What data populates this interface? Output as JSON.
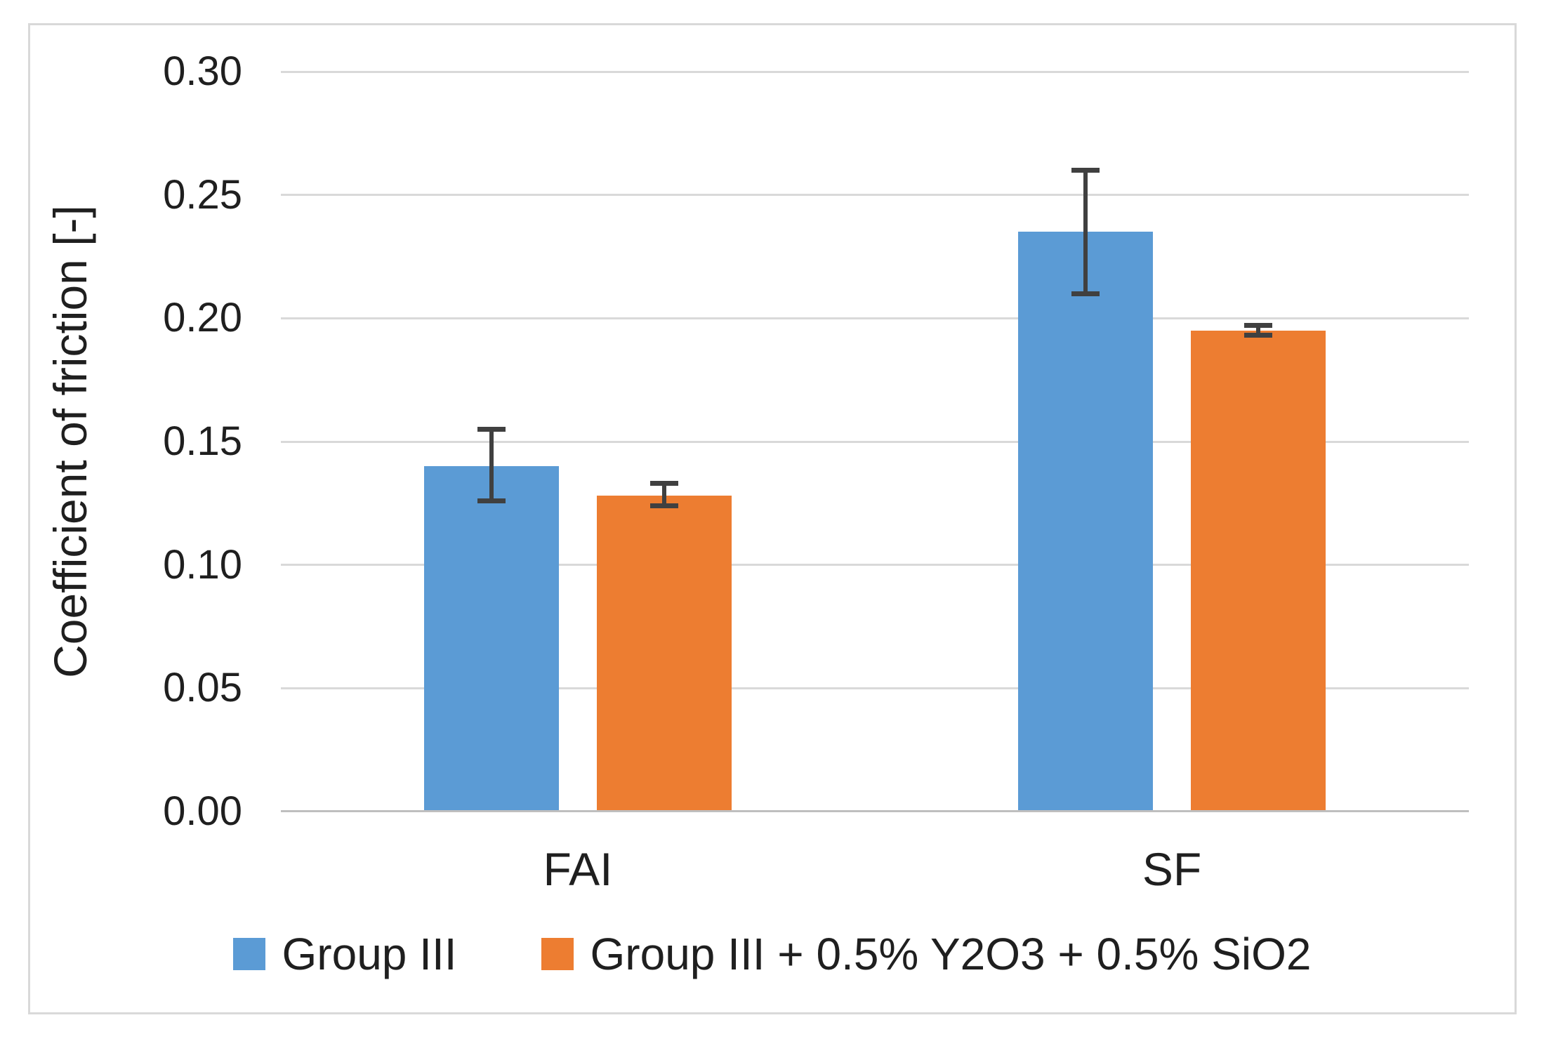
{
  "chart_data": {
    "type": "bar",
    "title": "",
    "xlabel": "",
    "ylabel": "Coefficient of friction [-]",
    "ylim": [
      0,
      0.3
    ],
    "ytick_step": 0.05,
    "ytick_labels": [
      "0.30",
      "0.25",
      "0.20",
      "0.15",
      "0.10",
      "0.05",
      "0.00"
    ],
    "categories": [
      "FAI",
      "SF"
    ],
    "series": [
      {
        "name": "Group III",
        "color": "#5b9bd5",
        "values": [
          0.14,
          0.235
        ],
        "error_plus": [
          0.015,
          0.025
        ],
        "error_minus": [
          0.014,
          0.025
        ]
      },
      {
        "name": "Group III + 0.5% Y2O3 + 0.5% SiO2",
        "color": "#ed7d31",
        "values": [
          0.128,
          0.195
        ],
        "error_plus": [
          0.005,
          0.002
        ],
        "error_minus": [
          0.004,
          0.002
        ]
      }
    ],
    "grid": true,
    "legend_position": "bottom"
  },
  "colors": {
    "gridline": "#d9d9d9",
    "axis_line": "#bfbfbf",
    "error_bar": "#404040",
    "frame_border": "#d9d9d9",
    "text": "#1f1f1f",
    "background": "#ffffff"
  }
}
